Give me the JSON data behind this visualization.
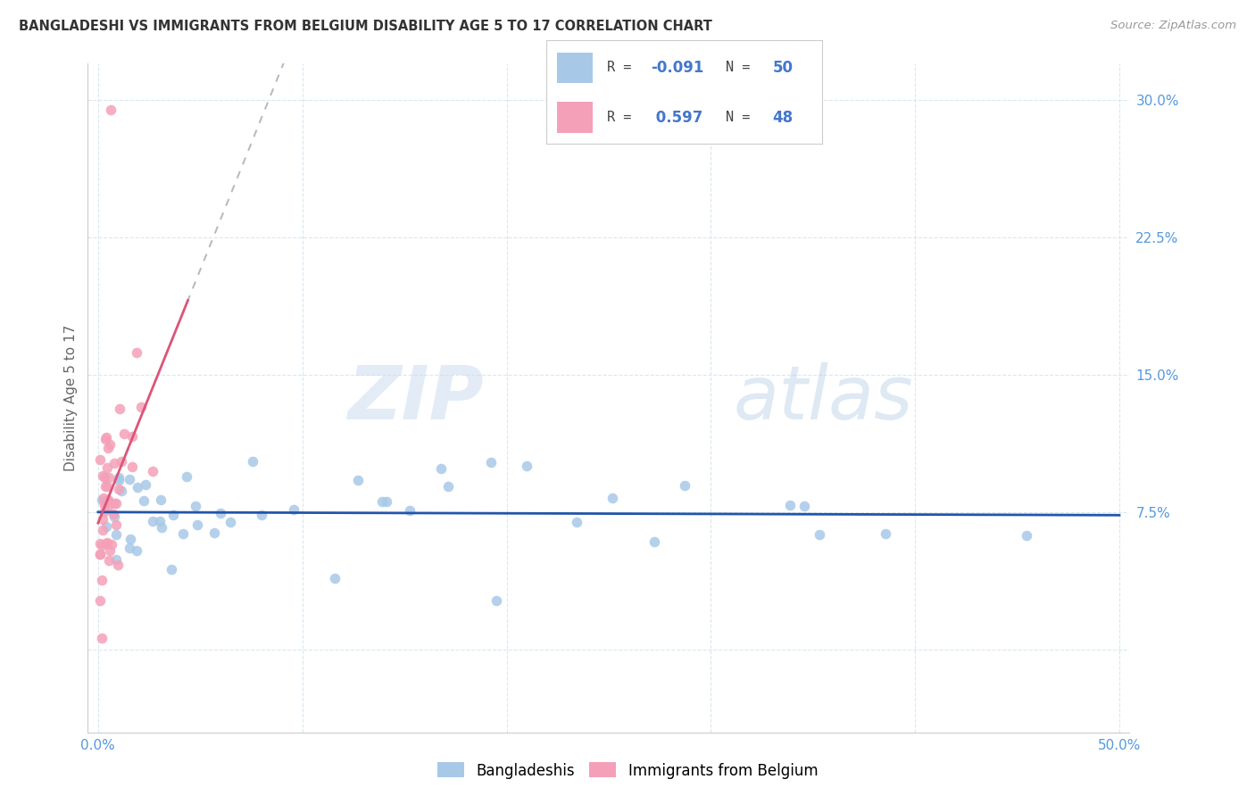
{
  "title": "BANGLADESHI VS IMMIGRANTS FROM BELGIUM DISABILITY AGE 5 TO 17 CORRELATION CHART",
  "source": "Source: ZipAtlas.com",
  "ylabel": "Disability Age 5 to 17",
  "color_blue": "#a8c8e8",
  "color_pink": "#f4a0b8",
  "trend_blue_color": "#2255aa",
  "trend_pink_color": "#dd5577",
  "trend_gray_color": "#bbbbbb",
  "watermark_zip": "ZIP",
  "watermark_atlas": "atlas",
  "legend_label_blue": "Bangladeshis",
  "legend_label_pink": "Immigrants from Belgium",
  "grid_color": "#d8e8f0",
  "tick_color": "#5599dd"
}
